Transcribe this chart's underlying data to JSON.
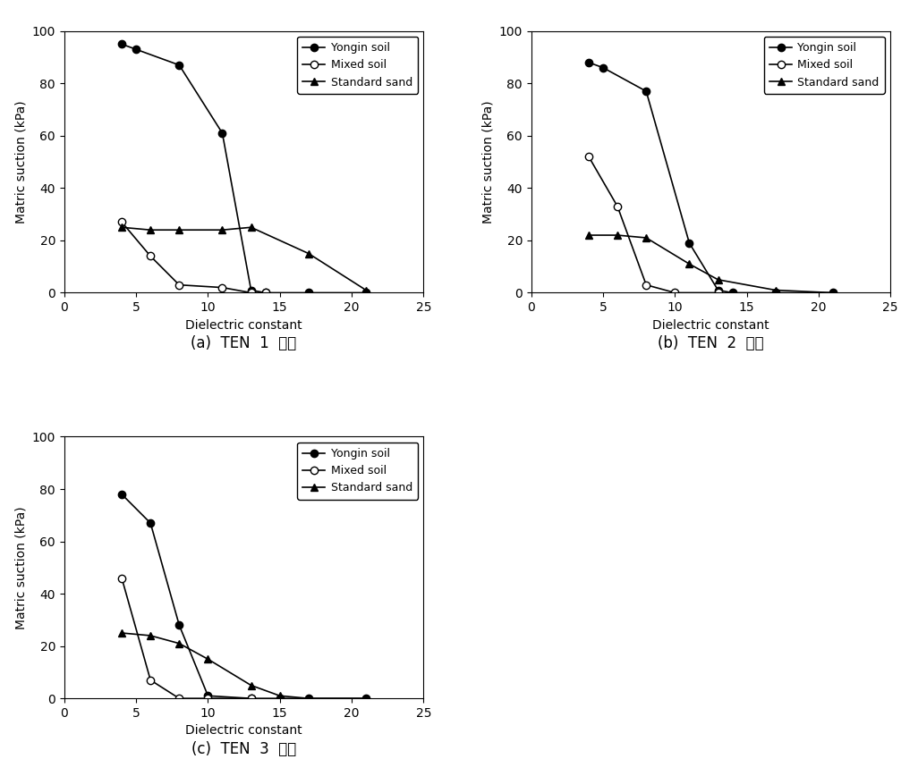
{
  "subplot_a": {
    "title": "(a)  TEN  1  위치",
    "yongin": {
      "x": [
        4,
        5,
        8,
        11,
        13,
        14,
        17,
        21
      ],
      "y": [
        95,
        93,
        87,
        61,
        1,
        0,
        0,
        0
      ]
    },
    "mixed": {
      "x": [
        4,
        6,
        8,
        11,
        13,
        14
      ],
      "y": [
        27,
        14,
        3,
        2,
        0,
        0
      ]
    },
    "standard": {
      "x": [
        4,
        6,
        8,
        11,
        13,
        17,
        21
      ],
      "y": [
        25,
        24,
        24,
        24,
        25,
        15,
        1
      ]
    }
  },
  "subplot_b": {
    "title": "(b)  TEN  2  위치",
    "yongin": {
      "x": [
        4,
        5,
        8,
        11,
        13,
        14,
        17,
        21
      ],
      "y": [
        88,
        86,
        77,
        19,
        1,
        0,
        0,
        0
      ]
    },
    "mixed": {
      "x": [
        4,
        6,
        8,
        10,
        13
      ],
      "y": [
        52,
        33,
        3,
        0,
        0
      ]
    },
    "standard": {
      "x": [
        4,
        6,
        8,
        11,
        13,
        17,
        21
      ],
      "y": [
        22,
        22,
        21,
        11,
        5,
        1,
        0
      ]
    }
  },
  "subplot_c": {
    "title": "(c)  TEN  3  위치",
    "yongin": {
      "x": [
        4,
        6,
        8,
        10,
        13,
        15,
        17,
        21
      ],
      "y": [
        78,
        67,
        28,
        1,
        0,
        0,
        0,
        0
      ]
    },
    "mixed": {
      "x": [
        4,
        6,
        8,
        10,
        13
      ],
      "y": [
        46,
        7,
        0,
        0,
        0
      ]
    },
    "standard": {
      "x": [
        4,
        6,
        8,
        10,
        13,
        15,
        17,
        21
      ],
      "y": [
        25,
        24,
        21,
        15,
        5,
        1,
        0,
        0
      ]
    }
  },
  "xlabel": "Dielectric constant",
  "ylabel": "Matric suction (kPa)",
  "xlim": [
    0,
    25
  ],
  "ylim": [
    0,
    100
  ],
  "xticks": [
    0,
    5,
    10,
    15,
    20,
    25
  ],
  "yticks": [
    0,
    20,
    40,
    60,
    80,
    100
  ],
  "legend_labels": [
    "Yongin soil",
    "Mixed soil",
    "Standard sand"
  ],
  "title_fontsize": 12,
  "axis_fontsize": 10,
  "legend_fontsize": 9,
  "markersize": 6,
  "linewidth": 1.2
}
